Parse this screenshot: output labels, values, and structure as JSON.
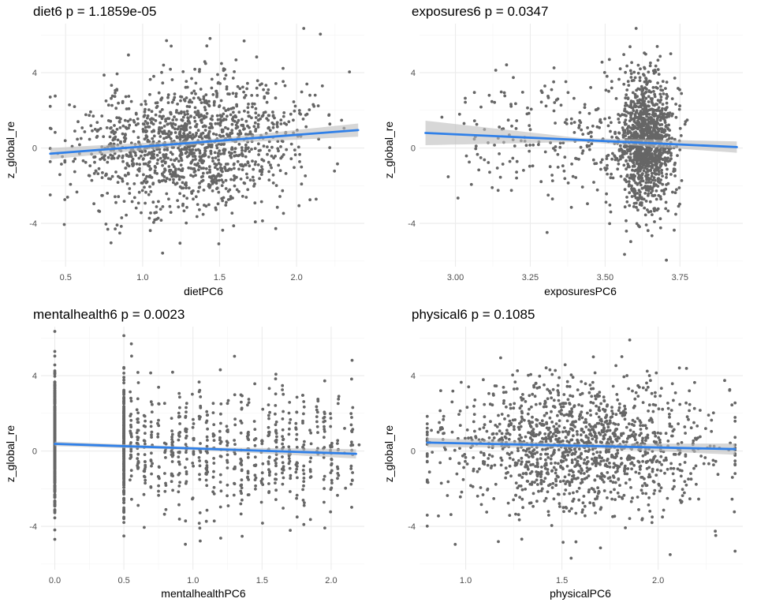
{
  "chart_data": [
    {
      "type": "scatter",
      "title": "diet6 p = 1.1859e-05",
      "xlabel": "dietPC6",
      "ylabel": "z_global_re",
      "xlim": [
        0.34,
        2.44
      ],
      "ylim": [
        -6.3,
        6.6
      ],
      "xticks": [
        0.5,
        1.0,
        1.5,
        2.0
      ],
      "xtick_labels": [
        "0.5",
        "1.0",
        "1.5",
        "2.0"
      ],
      "yticks": [
        -4,
        0,
        4
      ],
      "ytick_labels": [
        "-4",
        "0",
        "4"
      ],
      "grid": true,
      "fit": {
        "x0": 0.4,
        "y0": -0.3,
        "x1": 2.4,
        "y1": 0.95,
        "se": [
          0.3,
          0.12,
          0.35
        ]
      },
      "points": {
        "n": 1400,
        "x_mean": 1.3,
        "x_sd": 0.36,
        "x_min": 0.4,
        "x_max": 2.4,
        "y_sd": 1.75,
        "seed": 11
      }
    },
    {
      "type": "scatter",
      "title": "exposures6 p = 0.0347",
      "xlabel": "exposuresPC6",
      "ylabel": "z_global_re",
      "xlim": [
        2.88,
        3.96
      ],
      "ylim": [
        -6.3,
        6.6
      ],
      "xticks": [
        3.0,
        3.25,
        3.5,
        3.75
      ],
      "xtick_labels": [
        "3.00",
        "3.25",
        "3.50",
        "3.75"
      ],
      "yticks": [
        -4,
        0,
        4
      ],
      "ytick_labels": [
        "-4",
        "0",
        "4"
      ],
      "grid": true,
      "fit": {
        "x0": 2.9,
        "y0": 0.8,
        "x1": 3.94,
        "y1": 0.05,
        "se": [
          0.65,
          0.1,
          0.3
        ]
      },
      "points": {
        "n": 1400,
        "x_mean": 3.64,
        "x_sd": 0.045,
        "x_min": 2.9,
        "x_max": 3.94,
        "tail_fraction": 0.2,
        "y_sd": 1.75,
        "seed": 23
      }
    },
    {
      "type": "scatter",
      "title": "mentalhealth6 p = 0.0023",
      "xlabel": "mentalhealthPC6",
      "ylabel": "z_global_re",
      "xlim": [
        -0.1,
        2.24
      ],
      "ylim": [
        -6.3,
        6.6
      ],
      "xticks": [
        0.0,
        0.5,
        1.0,
        1.5,
        2.0
      ],
      "xtick_labels": [
        "0.0",
        "0.5",
        "1.0",
        "1.5",
        "2.0"
      ],
      "yticks": [
        -4,
        0,
        4
      ],
      "ytick_labels": [
        "-4",
        "0",
        "4"
      ],
      "grid": true,
      "fit": {
        "x0": 0.0,
        "y0": 0.38,
        "x1": 2.18,
        "y1": -0.15,
        "se": [
          0.12,
          0.08,
          0.25
        ]
      },
      "points": {
        "n": 1300,
        "discrete_x": [
          0.0,
          0.5
        ],
        "discrete_share": [
          0.3,
          0.18
        ],
        "x_min": 0.55,
        "x_max": 2.18,
        "y_sd": 1.75,
        "seed": 37
      }
    },
    {
      "type": "scatter",
      "title": "physical6 p = 0.1085",
      "xlabel": "physicalPC6",
      "ylabel": "z_global_re",
      "xlim": [
        0.76,
        2.44
      ],
      "ylim": [
        -6.3,
        6.6
      ],
      "xticks": [
        1.0,
        1.5,
        2.0
      ],
      "xtick_labels": [
        "1.0",
        "1.5",
        "2.0"
      ],
      "yticks": [
        -4,
        0,
        4
      ],
      "ytick_labels": [
        "-4",
        "0",
        "4"
      ],
      "grid": true,
      "fit": {
        "x0": 0.8,
        "y0": 0.45,
        "x1": 2.4,
        "y1": 0.1,
        "se": [
          0.25,
          0.1,
          0.3
        ]
      },
      "points": {
        "n": 1400,
        "x_mean": 1.6,
        "x_sd": 0.34,
        "x_min": 0.8,
        "x_max": 2.4,
        "y_sd": 1.75,
        "seed": 53
      }
    }
  ]
}
